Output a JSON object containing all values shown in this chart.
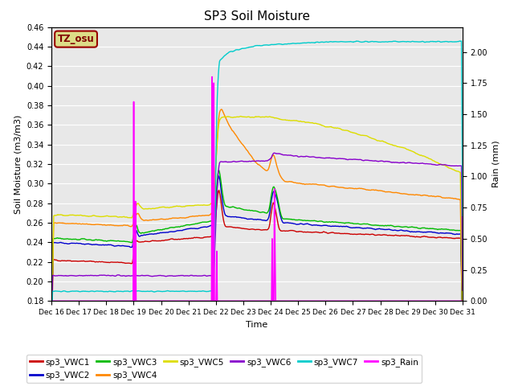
{
  "title": "SP3 Soil Moisture",
  "xlabel": "Time",
  "ylabel_left": "Soil Moisture (m3/m3)",
  "ylabel_right": "Rain (mm)",
  "ylim_left": [
    0.18,
    0.46
  ],
  "ylim_right": [
    0.0,
    2.2
  ],
  "background_color": "#e8e8e8",
  "colors": {
    "VWC1": "#cc0000",
    "VWC2": "#0000cc",
    "VWC3": "#00bb00",
    "VWC4": "#ff8800",
    "VWC5": "#dddd00",
    "VWC6": "#8800cc",
    "VWC7": "#00cccc",
    "Rain": "#ff00ff"
  },
  "legend_label": "TZ_osu",
  "legend_box_facecolor": "#dddd88",
  "legend_box_edgecolor": "#990000"
}
